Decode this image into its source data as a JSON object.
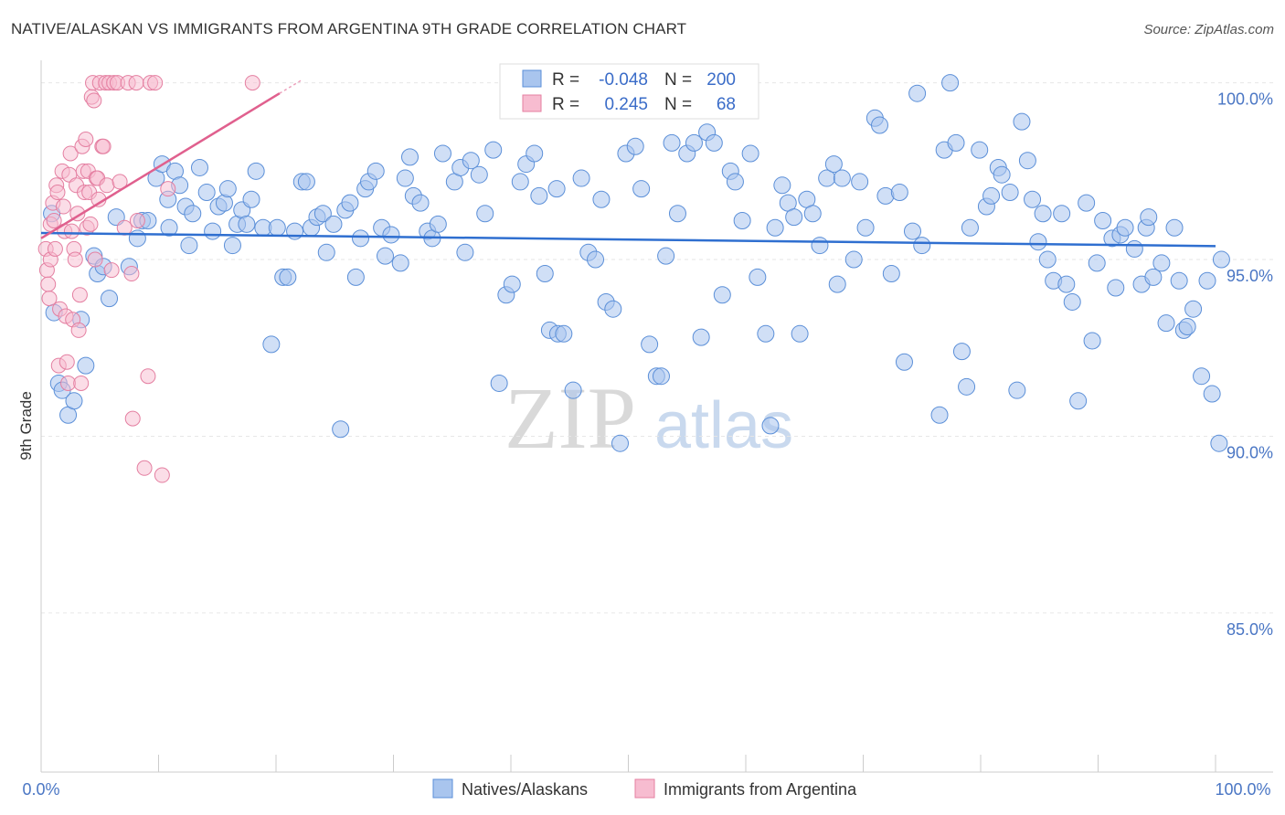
{
  "title": "NATIVE/ALASKAN VS IMMIGRANTS FROM ARGENTINA 9TH GRADE CORRELATION CHART",
  "source": "Source: ZipAtlas.com",
  "watermark": {
    "part1": "ZIP",
    "part2": "atlas"
  },
  "chart_data": {
    "type": "scatter",
    "title": "NATIVE/ALASKAN VS IMMIGRANTS FROM ARGENTINA 9TH GRADE CORRELATION CHART",
    "xlabel": "",
    "ylabel": "9th Grade",
    "xlim": [
      0,
      100
    ],
    "ylim": [
      80.5,
      100.3
    ],
    "x_tick_labels": [
      "0.0%",
      "100.0%"
    ],
    "y_ticks": [
      {
        "value": 100,
        "label": "100.0%"
      },
      {
        "value": 95,
        "label": "95.0%"
      },
      {
        "value": 90,
        "label": "90.0%"
      },
      {
        "value": 85,
        "label": "85.0%"
      }
    ],
    "grid": true,
    "legend_position": "top-center",
    "colors": {
      "blue_fill": "#a9c5ee",
      "blue_stroke": "#5b8fd8",
      "blue_line": "#2f6fd0",
      "pink_fill": "#f7bcd0",
      "pink_stroke": "#e47fa1",
      "pink_line": "#e0608e"
    },
    "stats": [
      {
        "series": "Natives/Alaskans",
        "r_label": "R =",
        "r": "-0.048",
        "n_label": "N =",
        "n": "200"
      },
      {
        "series": "Immigrants from Argentina",
        "r_label": "R =",
        "r": "0.245",
        "n_label": "N =",
        "n": "68"
      }
    ],
    "series": [
      {
        "name": "Natives/Alaskans",
        "trend": {
          "x0": 0,
          "y0": 95.75,
          "x1": 100,
          "y1": 95.38
        },
        "points": [
          [
            0.9,
            96.3
          ],
          [
            1.1,
            93.5
          ],
          [
            1.5,
            91.5
          ],
          [
            1.8,
            91.3
          ],
          [
            2.3,
            90.6
          ],
          [
            2.8,
            91.0
          ],
          [
            3.4,
            93.3
          ],
          [
            3.8,
            92.0
          ],
          [
            4.5,
            95.1
          ],
          [
            4.8,
            94.6
          ],
          [
            5.3,
            94.8
          ],
          [
            5.8,
            93.9
          ],
          [
            6.4,
            96.2
          ],
          [
            7.5,
            94.8
          ],
          [
            8.2,
            95.6
          ],
          [
            8.6,
            96.1
          ],
          [
            9.1,
            96.1
          ],
          [
            9.8,
            97.3
          ],
          [
            10.3,
            97.7
          ],
          [
            10.8,
            96.7
          ],
          [
            10.9,
            95.9
          ],
          [
            11.4,
            97.5
          ],
          [
            11.8,
            97.1
          ],
          [
            12.3,
            96.5
          ],
          [
            12.6,
            95.4
          ],
          [
            12.9,
            96.3
          ],
          [
            13.5,
            97.6
          ],
          [
            14.1,
            96.9
          ],
          [
            14.6,
            95.8
          ],
          [
            15.1,
            96.5
          ],
          [
            15.6,
            96.6
          ],
          [
            15.9,
            97.0
          ],
          [
            16.3,
            95.4
          ],
          [
            16.7,
            96.0
          ],
          [
            17.1,
            96.4
          ],
          [
            17.5,
            96.0
          ],
          [
            17.9,
            96.7
          ],
          [
            18.3,
            97.5
          ],
          [
            18.9,
            95.9
          ],
          [
            19.6,
            92.6
          ],
          [
            20.1,
            95.9
          ],
          [
            20.6,
            94.5
          ],
          [
            21.0,
            94.5
          ],
          [
            21.6,
            95.8
          ],
          [
            22.2,
            97.2
          ],
          [
            22.6,
            97.2
          ],
          [
            23.0,
            95.9
          ],
          [
            23.5,
            96.2
          ],
          [
            24.0,
            96.3
          ],
          [
            24.3,
            95.2
          ],
          [
            24.9,
            96.0
          ],
          [
            25.5,
            90.2
          ],
          [
            25.9,
            96.4
          ],
          [
            26.3,
            96.6
          ],
          [
            26.8,
            94.5
          ],
          [
            27.2,
            95.6
          ],
          [
            27.6,
            97.0
          ],
          [
            27.9,
            97.2
          ],
          [
            28.5,
            97.5
          ],
          [
            29.0,
            95.9
          ],
          [
            29.3,
            95.1
          ],
          [
            29.8,
            95.7
          ],
          [
            30.6,
            94.9
          ],
          [
            31.0,
            97.3
          ],
          [
            31.4,
            97.9
          ],
          [
            31.7,
            96.8
          ],
          [
            32.3,
            96.6
          ],
          [
            32.9,
            95.8
          ],
          [
            33.3,
            95.6
          ],
          [
            33.8,
            96.0
          ],
          [
            34.2,
            98.0
          ],
          [
            35.2,
            97.2
          ],
          [
            35.7,
            97.6
          ],
          [
            36.1,
            95.2
          ],
          [
            36.6,
            97.8
          ],
          [
            37.3,
            97.4
          ],
          [
            37.8,
            96.3
          ],
          [
            38.5,
            98.1
          ],
          [
            39.0,
            91.5
          ],
          [
            39.6,
            94.0
          ],
          [
            40.1,
            94.3
          ],
          [
            40.8,
            97.2
          ],
          [
            41.3,
            97.7
          ],
          [
            42.0,
            98.0
          ],
          [
            42.4,
            96.8
          ],
          [
            42.9,
            94.6
          ],
          [
            43.3,
            93.0
          ],
          [
            43.9,
            97.0
          ],
          [
            44.0,
            92.9
          ],
          [
            44.5,
            92.9
          ],
          [
            45.3,
            91.3
          ],
          [
            46.0,
            97.3
          ],
          [
            46.6,
            95.2
          ],
          [
            47.2,
            95.0
          ],
          [
            47.7,
            96.7
          ],
          [
            48.1,
            93.8
          ],
          [
            48.7,
            93.6
          ],
          [
            49.3,
            89.8
          ],
          [
            49.8,
            98.0
          ],
          [
            50.6,
            98.2
          ],
          [
            51.1,
            97.0
          ],
          [
            51.8,
            92.6
          ],
          [
            52.4,
            91.7
          ],
          [
            52.8,
            91.7
          ],
          [
            53.2,
            95.1
          ],
          [
            53.7,
            98.3
          ],
          [
            54.2,
            96.3
          ],
          [
            55.0,
            98.0
          ],
          [
            55.6,
            98.3
          ],
          [
            56.2,
            92.8
          ],
          [
            56.7,
            98.6
          ],
          [
            57.3,
            98.3
          ],
          [
            58.0,
            94.0
          ],
          [
            58.7,
            97.5
          ],
          [
            59.1,
            97.2
          ],
          [
            59.7,
            96.1
          ],
          [
            60.4,
            98.0
          ],
          [
            61.0,
            94.5
          ],
          [
            61.7,
            92.9
          ],
          [
            62.1,
            90.3
          ],
          [
            62.5,
            95.9
          ],
          [
            63.1,
            97.1
          ],
          [
            63.6,
            96.6
          ],
          [
            64.1,
            96.2
          ],
          [
            64.6,
            92.9
          ],
          [
            65.2,
            96.7
          ],
          [
            65.7,
            96.3
          ],
          [
            66.3,
            95.4
          ],
          [
            66.9,
            97.3
          ],
          [
            67.5,
            97.7
          ],
          [
            67.8,
            94.3
          ],
          [
            68.2,
            97.3
          ],
          [
            69.2,
            95.0
          ],
          [
            69.7,
            97.2
          ],
          [
            70.2,
            95.9
          ],
          [
            71.0,
            99.0
          ],
          [
            71.4,
            98.8
          ],
          [
            71.9,
            96.8
          ],
          [
            72.4,
            94.6
          ],
          [
            73.1,
            96.9
          ],
          [
            73.5,
            92.1
          ],
          [
            74.2,
            95.8
          ],
          [
            74.6,
            99.7
          ],
          [
            75.0,
            95.4
          ],
          [
            76.5,
            90.6
          ],
          [
            76.9,
            98.1
          ],
          [
            77.4,
            100.0
          ],
          [
            77.9,
            98.3
          ],
          [
            78.4,
            92.4
          ],
          [
            78.8,
            91.4
          ],
          [
            79.1,
            95.9
          ],
          [
            79.9,
            98.1
          ],
          [
            80.5,
            96.5
          ],
          [
            80.9,
            96.8
          ],
          [
            81.5,
            97.6
          ],
          [
            81.8,
            97.4
          ],
          [
            82.5,
            96.9
          ],
          [
            83.1,
            91.3
          ],
          [
            83.5,
            98.9
          ],
          [
            84.0,
            97.8
          ],
          [
            84.4,
            96.7
          ],
          [
            84.9,
            95.5
          ],
          [
            85.3,
            96.3
          ],
          [
            85.7,
            95.0
          ],
          [
            86.2,
            94.4
          ],
          [
            86.9,
            96.3
          ],
          [
            87.3,
            94.3
          ],
          [
            87.8,
            93.8
          ],
          [
            88.3,
            91.0
          ],
          [
            89.0,
            96.6
          ],
          [
            89.5,
            92.7
          ],
          [
            89.9,
            94.9
          ],
          [
            90.4,
            96.1
          ],
          [
            91.2,
            95.6
          ],
          [
            91.5,
            94.2
          ],
          [
            91.9,
            95.7
          ],
          [
            92.3,
            95.9
          ],
          [
            93.1,
            95.3
          ],
          [
            93.7,
            94.3
          ],
          [
            94.1,
            95.9
          ],
          [
            94.3,
            96.2
          ],
          [
            94.7,
            94.5
          ],
          [
            95.4,
            94.9
          ],
          [
            95.8,
            93.2
          ],
          [
            96.5,
            95.9
          ],
          [
            96.9,
            94.4
          ],
          [
            97.3,
            93.0
          ],
          [
            97.6,
            93.1
          ],
          [
            98.1,
            93.6
          ],
          [
            98.8,
            91.7
          ],
          [
            99.3,
            94.4
          ],
          [
            99.7,
            91.2
          ],
          [
            100.3,
            89.8
          ],
          [
            100.5,
            95.0
          ]
        ]
      },
      {
        "name": "Immigrants from Argentina",
        "trend": {
          "x0": 0,
          "y0": 95.6,
          "x1": 20.3,
          "y1": 99.7
        },
        "points": [
          [
            0.4,
            95.3
          ],
          [
            0.5,
            94.7
          ],
          [
            0.6,
            94.3
          ],
          [
            0.7,
            93.9
          ],
          [
            0.8,
            96.0
          ],
          [
            0.8,
            95.0
          ],
          [
            1.0,
            96.6
          ],
          [
            1.1,
            96.1
          ],
          [
            1.2,
            95.3
          ],
          [
            1.3,
            97.1
          ],
          [
            1.4,
            96.9
          ],
          [
            1.5,
            92.0
          ],
          [
            1.6,
            93.6
          ],
          [
            1.8,
            97.5
          ],
          [
            1.9,
            96.5
          ],
          [
            2.0,
            95.8
          ],
          [
            2.1,
            93.4
          ],
          [
            2.2,
            92.1
          ],
          [
            2.3,
            91.5
          ],
          [
            2.4,
            97.4
          ],
          [
            2.5,
            98.0
          ],
          [
            2.6,
            95.8
          ],
          [
            2.7,
            93.3
          ],
          [
            2.8,
            95.3
          ],
          [
            2.9,
            95.0
          ],
          [
            3.0,
            97.1
          ],
          [
            3.1,
            96.3
          ],
          [
            3.2,
            93.0
          ],
          [
            3.3,
            94.0
          ],
          [
            3.4,
            91.5
          ],
          [
            3.5,
            98.2
          ],
          [
            3.6,
            97.5
          ],
          [
            3.7,
            96.9
          ],
          [
            3.8,
            98.4
          ],
          [
            3.9,
            95.9
          ],
          [
            4.0,
            97.5
          ],
          [
            4.1,
            96.9
          ],
          [
            4.2,
            96.0
          ],
          [
            4.3,
            99.6
          ],
          [
            4.4,
            100.0
          ],
          [
            4.5,
            99.5
          ],
          [
            4.6,
            95.0
          ],
          [
            4.7,
            97.3
          ],
          [
            4.8,
            97.3
          ],
          [
            4.9,
            96.7
          ],
          [
            5.0,
            100.0
          ],
          [
            5.2,
            98.2
          ],
          [
            5.3,
            98.2
          ],
          [
            5.5,
            100.0
          ],
          [
            5.6,
            97.1
          ],
          [
            5.8,
            100.0
          ],
          [
            6.0,
            94.7
          ],
          [
            6.2,
            100.0
          ],
          [
            6.5,
            100.0
          ],
          [
            6.7,
            97.2
          ],
          [
            7.1,
            95.9
          ],
          [
            7.4,
            100.0
          ],
          [
            7.7,
            94.6
          ],
          [
            7.8,
            90.5
          ],
          [
            8.1,
            100.0
          ],
          [
            8.2,
            96.1
          ],
          [
            8.8,
            89.1
          ],
          [
            9.1,
            91.7
          ],
          [
            9.3,
            100.0
          ],
          [
            9.7,
            100.0
          ],
          [
            10.3,
            88.9
          ],
          [
            10.8,
            97.0
          ],
          [
            18.0,
            100.0
          ]
        ]
      }
    ]
  },
  "legend": {
    "items": [
      {
        "label": "Natives/Alaskans"
      },
      {
        "label": "Immigrants from Argentina"
      }
    ]
  }
}
